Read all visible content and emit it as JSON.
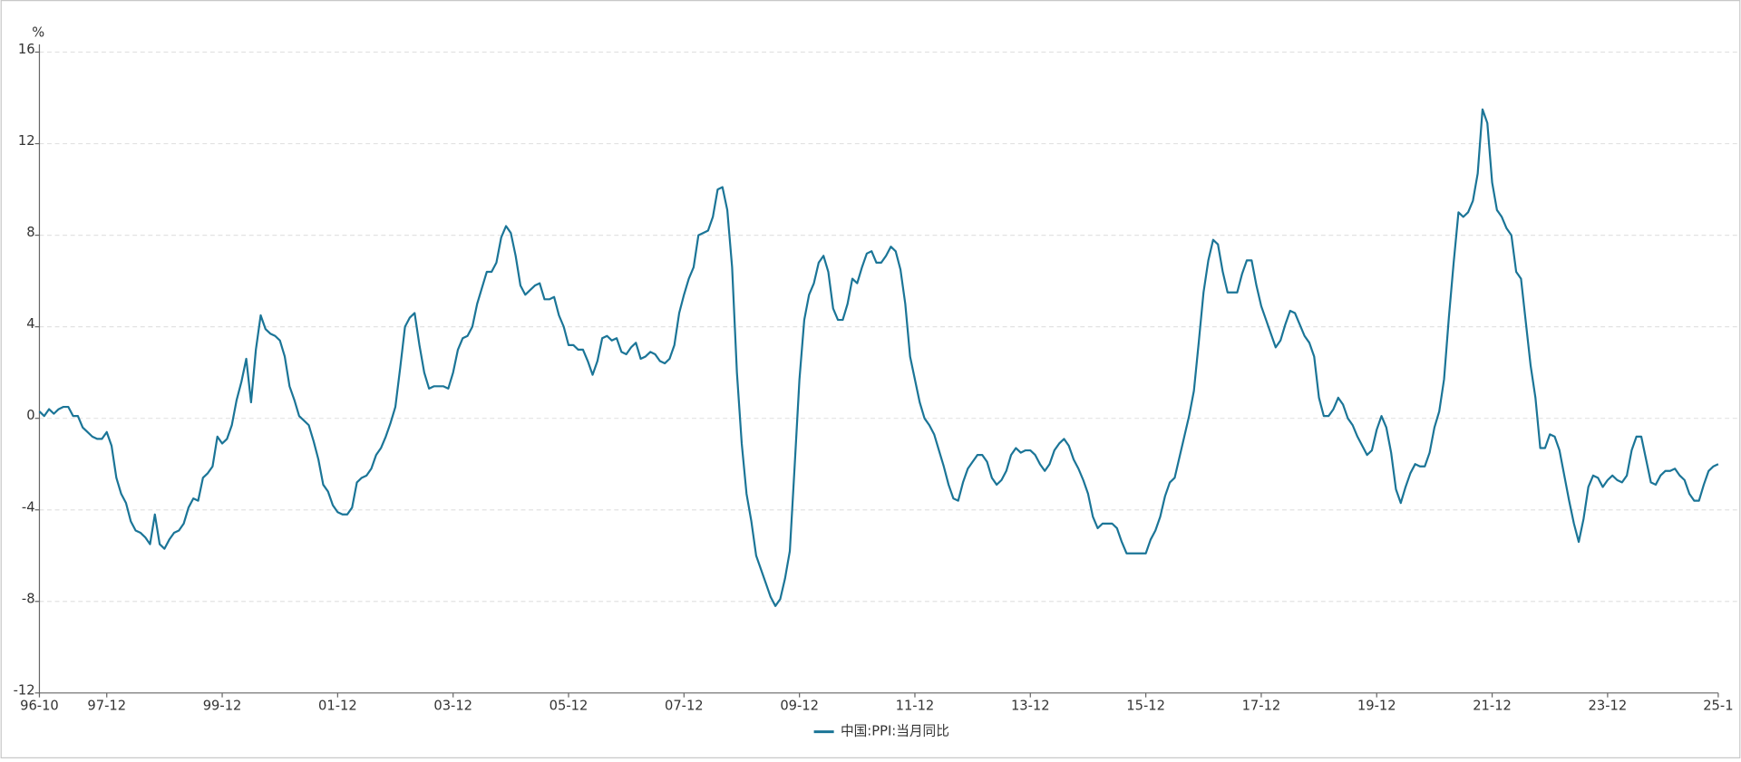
{
  "chart_data": {
    "type": "line",
    "y_axis_label": "%",
    "categories": [
      "96-10",
      null,
      null,
      null,
      null,
      null,
      null,
      null,
      null,
      null,
      null,
      null,
      null,
      null,
      "97-12",
      null,
      null,
      null,
      null,
      null,
      null,
      null,
      null,
      null,
      null,
      null,
      null,
      null,
      null,
      null,
      null,
      null,
      null,
      null,
      null,
      null,
      null,
      null,
      "99-12",
      null,
      null,
      null,
      null,
      null,
      null,
      null,
      null,
      null,
      null,
      null,
      null,
      null,
      null,
      null,
      null,
      null,
      null,
      null,
      null,
      null,
      null,
      null,
      "01-12",
      null,
      null,
      null,
      null,
      null,
      null,
      null,
      null,
      null,
      null,
      null,
      null,
      null,
      null,
      null,
      null,
      null,
      null,
      null,
      null,
      null,
      null,
      null,
      "03-12",
      null,
      null,
      null,
      null,
      null,
      null,
      null,
      null,
      null,
      null,
      null,
      null,
      null,
      null,
      null,
      null,
      null,
      null,
      null,
      null,
      null,
      null,
      null,
      "05-12",
      null,
      null,
      null,
      null,
      null,
      null,
      null,
      null,
      null,
      null,
      null,
      null,
      null,
      null,
      null,
      null,
      null,
      null,
      null,
      null,
      null,
      null,
      null,
      "07-12",
      null,
      null,
      null,
      null,
      null,
      null,
      null,
      null,
      null,
      null,
      null,
      null,
      null,
      null,
      null,
      null,
      null,
      null,
      null,
      null,
      null,
      null,
      null,
      "09-12",
      null,
      null,
      null,
      null,
      null,
      null,
      null,
      null,
      null,
      null,
      null,
      null,
      null,
      null,
      null,
      null,
      null,
      null,
      null,
      null,
      null,
      null,
      null,
      "11-12",
      null,
      null,
      null,
      null,
      null,
      null,
      null,
      null,
      null,
      null,
      null,
      null,
      null,
      null,
      null,
      null,
      null,
      null,
      null,
      null,
      null,
      null,
      null,
      "13-12",
      null,
      null,
      null,
      null,
      null,
      null,
      null,
      null,
      null,
      null,
      null,
      null,
      null,
      null,
      null,
      null,
      null,
      null,
      null,
      null,
      null,
      null,
      null,
      "15-12",
      null,
      null,
      null,
      null,
      null,
      null,
      null,
      null,
      null,
      null,
      null,
      null,
      null,
      null,
      null,
      null,
      null,
      null,
      null,
      null,
      null,
      null,
      null,
      "17-12",
      null,
      null,
      null,
      null,
      null,
      null,
      null,
      null,
      null,
      null,
      null,
      null,
      null,
      null,
      null,
      null,
      null,
      null,
      null,
      null,
      null,
      null,
      null,
      "19-12",
      null,
      null,
      null,
      null,
      null,
      null,
      null,
      null,
      null,
      null,
      null,
      null,
      null,
      null,
      null,
      null,
      null,
      null,
      null,
      null,
      null,
      null,
      null,
      "21-12",
      null,
      null,
      null,
      null,
      null,
      null,
      null,
      null,
      null,
      null,
      null,
      null,
      null,
      null,
      null,
      null,
      null,
      null,
      null,
      null,
      null,
      null,
      null,
      "23-12",
      null,
      null,
      null,
      null,
      null,
      null,
      null,
      null,
      null,
      null,
      null,
      null,
      null,
      null,
      null,
      null,
      null,
      null,
      null,
      null,
      null,
      null,
      "25-1"
    ],
    "series": [
      {
        "name": "中国:PPI:当月同比",
        "color": "#1b7597",
        "values": [
          0.3,
          0.1,
          0.4,
          0.2,
          0.4,
          0.5,
          0.5,
          0.1,
          0.1,
          -0.4,
          -0.6,
          -0.8,
          -0.9,
          -0.9,
          -0.6,
          -1.2,
          -2.6,
          -3.3,
          -3.7,
          -4.5,
          -4.9,
          -5.0,
          -5.2,
          -5.5,
          -4.2,
          -5.5,
          -5.7,
          -5.3,
          -5.0,
          -4.9,
          -4.6,
          -3.9,
          -3.5,
          -3.6,
          -2.6,
          -2.4,
          -2.1,
          -0.8,
          -1.1,
          -0.9,
          -0.3,
          0.8,
          1.6,
          2.6,
          0.7,
          3.0,
          4.5,
          3.9,
          3.7,
          3.6,
          3.4,
          2.7,
          1.4,
          0.8,
          0.1,
          -0.1,
          -0.3,
          -1.0,
          -1.8,
          -2.9,
          -3.2,
          -3.8,
          -4.1,
          -4.2,
          -4.2,
          -3.9,
          -2.8,
          -2.6,
          -2.5,
          -2.2,
          -1.6,
          -1.3,
          -0.8,
          -0.2,
          0.5,
          2.2,
          4.0,
          4.4,
          4.6,
          3.2,
          2.0,
          1.3,
          1.4,
          1.4,
          1.4,
          1.3,
          2.0,
          3.0,
          3.5,
          3.6,
          4.0,
          5.0,
          5.7,
          6.4,
          6.4,
          6.8,
          7.9,
          8.4,
          8.1,
          7.1,
          5.8,
          5.4,
          5.6,
          5.8,
          5.9,
          5.2,
          5.2,
          5.3,
          4.5,
          4.0,
          3.2,
          3.2,
          3.0,
          3.0,
          2.5,
          1.9,
          2.5,
          3.5,
          3.6,
          3.4,
          3.5,
          2.9,
          2.8,
          3.1,
          3.3,
          2.6,
          2.7,
          2.9,
          2.8,
          2.5,
          2.4,
          2.6,
          3.2,
          4.6,
          5.4,
          6.1,
          6.6,
          8.0,
          8.1,
          8.2,
          8.8,
          10.0,
          10.1,
          9.1,
          6.6,
          2.0,
          -1.1,
          -3.3,
          -4.5,
          -6.0,
          -6.6,
          -7.2,
          -7.8,
          -8.2,
          -7.9,
          -7.0,
          -5.8,
          -2.1,
          1.7,
          4.3,
          5.4,
          5.9,
          6.8,
          7.1,
          6.4,
          4.8,
          4.3,
          4.3,
          5.0,
          6.1,
          5.9,
          6.6,
          7.2,
          7.3,
          6.8,
          6.8,
          7.1,
          7.5,
          7.3,
          6.5,
          5.0,
          2.7,
          1.7,
          0.7,
          0.0,
          -0.3,
          -0.7,
          -1.4,
          -2.1,
          -2.9,
          -3.5,
          -3.6,
          -2.8,
          -2.2,
          -1.9,
          -1.6,
          -1.6,
          -1.9,
          -2.6,
          -2.9,
          -2.7,
          -2.3,
          -1.6,
          -1.3,
          -1.5,
          -1.4,
          -1.4,
          -1.6,
          -2.0,
          -2.3,
          -2.0,
          -1.4,
          -1.1,
          -0.9,
          -1.2,
          -1.8,
          -2.2,
          -2.7,
          -3.3,
          -4.3,
          -4.8,
          -4.6,
          -4.6,
          -4.6,
          -4.8,
          -5.4,
          -5.9,
          -5.9,
          -5.9,
          -5.9,
          -5.9,
          -5.3,
          -4.9,
          -4.3,
          -3.4,
          -2.8,
          -2.6,
          -1.7,
          -0.8,
          0.1,
          1.2,
          3.3,
          5.5,
          6.9,
          7.8,
          7.6,
          6.4,
          5.5,
          5.5,
          5.5,
          6.3,
          6.9,
          6.9,
          5.8,
          4.9,
          4.3,
          3.7,
          3.1,
          3.4,
          4.1,
          4.7,
          4.6,
          4.1,
          3.6,
          3.3,
          2.7,
          0.9,
          0.1,
          0.1,
          0.4,
          0.9,
          0.6,
          0.0,
          -0.3,
          -0.8,
          -1.2,
          -1.6,
          -1.4,
          -0.5,
          0.1,
          -0.4,
          -1.5,
          -3.1,
          -3.7,
          -3.0,
          -2.4,
          -2.0,
          -2.1,
          -2.1,
          -1.5,
          -0.4,
          0.3,
          1.7,
          4.4,
          6.8,
          9.0,
          8.8,
          9.0,
          9.5,
          10.7,
          13.5,
          12.9,
          10.3,
          9.1,
          8.8,
          8.3,
          8.0,
          6.4,
          6.1,
          4.2,
          2.3,
          0.9,
          -1.3,
          -1.3,
          -0.7,
          -0.8,
          -1.4,
          -2.5,
          -3.6,
          -4.6,
          -5.4,
          -4.4,
          -3.0,
          -2.5,
          -2.6,
          -3.0,
          -2.7,
          -2.5,
          -2.7,
          -2.8,
          -2.5,
          -1.4,
          -0.8,
          -0.8,
          -1.8,
          -2.8,
          -2.9,
          -2.5,
          -2.3,
          -2.3,
          -2.2,
          -2.5,
          -2.7,
          -3.3,
          -3.6,
          -3.6,
          -2.9,
          -2.3,
          -2.1,
          -2.0
        ]
      }
    ],
    "ylim": [
      -12,
      16
    ],
    "yticks": [
      -12,
      -8,
      -4,
      0,
      4,
      8,
      12,
      16
    ],
    "grid": true,
    "legend": "bottom"
  }
}
